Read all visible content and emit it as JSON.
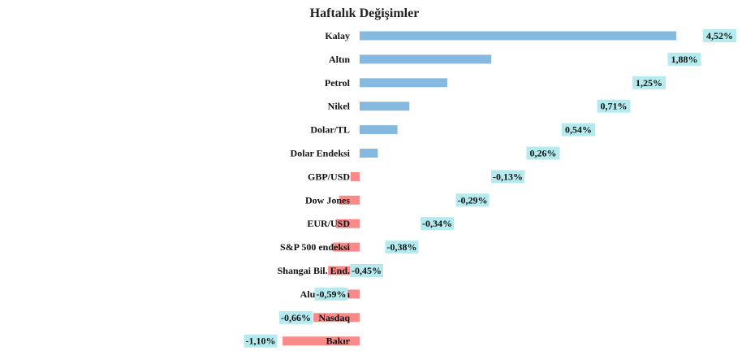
{
  "chart_data": {
    "type": "bar",
    "orientation": "horizontal",
    "title": "Haftalık Değişimler",
    "xlabel": "",
    "ylabel": "",
    "grid": false,
    "legend": "none",
    "categories": [
      "Kalay",
      "Altın",
      "Petrol",
      "Nikel",
      "Dolar/TL",
      "Dolar Endeksi",
      "GBP/USD",
      "Dow Jones",
      "EUR/USD",
      "S&P 500 endeksi",
      "Shangai Bil. End.",
      "Aluminyum",
      "Nasdaq",
      "Bakır"
    ],
    "values": [
      4.52,
      1.88,
      1.25,
      0.71,
      0.54,
      0.26,
      -0.13,
      -0.29,
      -0.34,
      -0.38,
      -0.45,
      -0.59,
      -0.66,
      -1.1
    ],
    "data_labels": [
      "4,52%",
      "1,88%",
      "1,25%",
      "0,71%",
      "0,54%",
      "0,26%",
      "-0,13%",
      "-0,29%",
      "-0,34%",
      "-0,38%",
      "-0,45%",
      "-0,59%",
      "-0,66%",
      "-1,10%"
    ],
    "colors": {
      "positive": "#86B9E0",
      "negative": "#F98A8A",
      "label_bg": "#B5EBEF"
    }
  }
}
